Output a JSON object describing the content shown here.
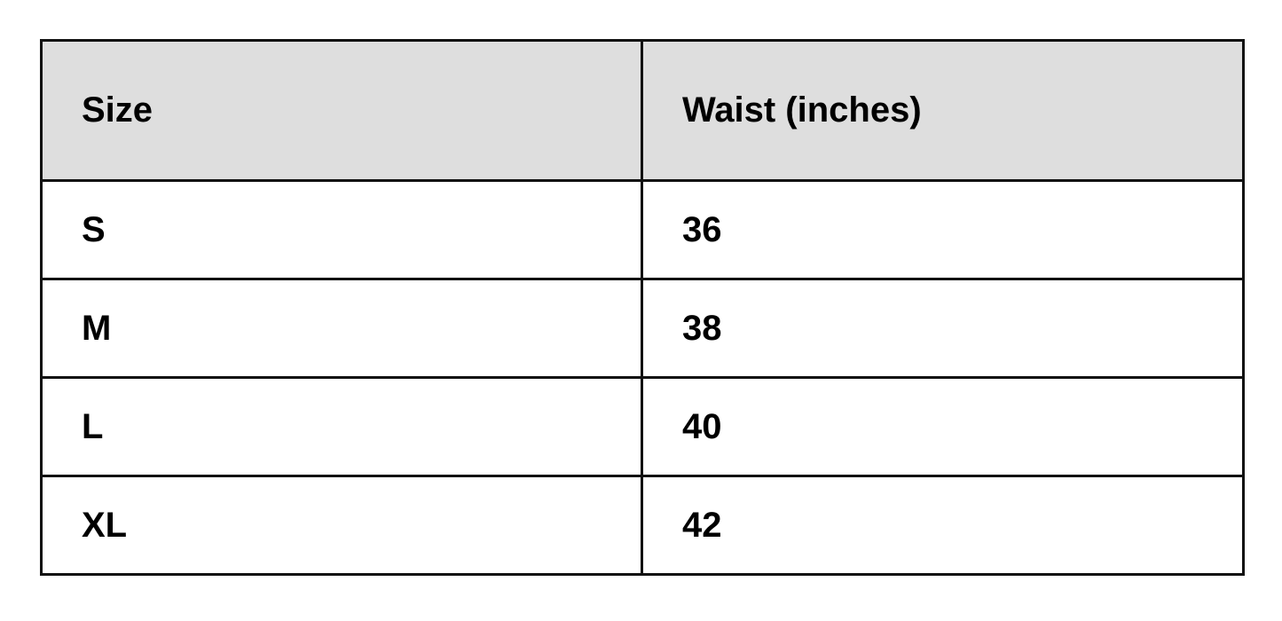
{
  "table": {
    "headers": [
      "Size",
      "Waist (inches)"
    ],
    "rows": [
      [
        "S",
        "36"
      ],
      [
        "M",
        "38"
      ],
      [
        "L",
        "40"
      ],
      [
        "XL",
        "42"
      ]
    ]
  },
  "colors": {
    "header_bg": "#dedede",
    "border": "#111111"
  }
}
